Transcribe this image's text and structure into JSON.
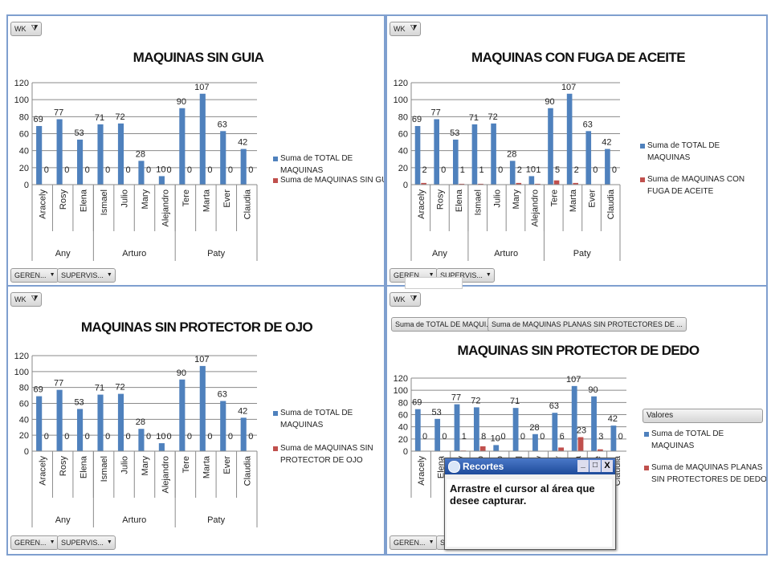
{
  "panels": [
    {
      "filter_label": "WK",
      "buttons": [
        "GEREN...",
        "SUPERVIS..."
      ]
    },
    {
      "filter_label": "WK",
      "buttons": [
        "GEREN...",
        "SUPERVIS..."
      ]
    },
    {
      "filter_label": "WK",
      "buttons": [
        "GEREN...",
        "SUPERVIS..."
      ]
    },
    {
      "filter_label": "WK",
      "buttons": [
        "GEREN...",
        "SUPERVIS..."
      ]
    }
  ],
  "chart_data": [
    {
      "type": "bar",
      "title": "MAQUINAS SIN GUIA",
      "categories": [
        "Aracely",
        "Rosy",
        "Elena",
        "Ismael",
        "Julio",
        "Mary",
        "Alejandro",
        "Tere",
        "Marta",
        "Ever",
        "Claudia"
      ],
      "category_groups": [
        {
          "name": "Any",
          "size": 3
        },
        {
          "name": "Arturo",
          "size": 4
        },
        {
          "name": "Paty",
          "size": 4
        }
      ],
      "series": [
        {
          "name": "Suma de TOTAL DE MAQUINAS",
          "color": "#4f81bd",
          "values": [
            69,
            77,
            53,
            71,
            72,
            28,
            10,
            90,
            107,
            63,
            42
          ]
        },
        {
          "name": "Suma de MAQUINAS SIN GUIA",
          "color": "#c0504d",
          "values": [
            0,
            0,
            0,
            0,
            0,
            0,
            0,
            0,
            0,
            0,
            0
          ]
        }
      ],
      "ylim": [
        0,
        120
      ],
      "yticks": [
        0,
        20,
        40,
        60,
        80,
        100,
        120
      ],
      "grid": true
    },
    {
      "type": "bar",
      "title": "MAQUINAS CON FUGA DE ACEITE",
      "categories": [
        "Aracely",
        "Rosy",
        "Elena",
        "Ismael",
        "Julio",
        "Mary",
        "Alejandro",
        "Tere",
        "Marta",
        "Ever",
        "Claudia"
      ],
      "category_groups": [
        {
          "name": "Any",
          "size": 3
        },
        {
          "name": "Arturo",
          "size": 4
        },
        {
          "name": "Paty",
          "size": 4
        }
      ],
      "series": [
        {
          "name": "Suma de TOTAL DE MAQUINAS",
          "color": "#4f81bd",
          "values": [
            69,
            77,
            53,
            71,
            72,
            28,
            10,
            90,
            107,
            63,
            42
          ]
        },
        {
          "name": "Suma de MAQUINAS CON FUGA DE ACEITE",
          "color": "#c0504d",
          "values": [
            2,
            0,
            1,
            1,
            0,
            2,
            1,
            5,
            2,
            0,
            0
          ]
        }
      ],
      "ylim": [
        0,
        120
      ],
      "yticks": [
        0,
        20,
        40,
        60,
        80,
        100,
        120
      ],
      "grid": true
    },
    {
      "type": "bar",
      "title": "MAQUINAS SIN PROTECTOR DE OJO",
      "categories": [
        "Aracely",
        "Rosy",
        "Elena",
        "Ismael",
        "Julio",
        "Mary",
        "Alejandro",
        "Tere",
        "Marta",
        "Ever",
        "Claudia"
      ],
      "category_groups": [
        {
          "name": "Any",
          "size": 3
        },
        {
          "name": "Arturo",
          "size": 4
        },
        {
          "name": "Paty",
          "size": 4
        }
      ],
      "series": [
        {
          "name": "Suma de TOTAL DE MAQUINAS",
          "color": "#4f81bd",
          "values": [
            69,
            77,
            53,
            71,
            72,
            28,
            10,
            90,
            107,
            63,
            42
          ]
        },
        {
          "name": "Suma de MAQUINAS SIN PROTECTOR DE OJO",
          "color": "#c0504d",
          "values": [
            0,
            0,
            0,
            0,
            0,
            0,
            0,
            0,
            0,
            0,
            0
          ]
        }
      ],
      "ylim": [
        0,
        120
      ],
      "yticks": [
        0,
        20,
        40,
        60,
        80,
        100,
        120
      ],
      "grid": true
    },
    {
      "type": "bar",
      "title": "MAQUINAS SIN PROTECTOR DE DEDO",
      "field_buttons": [
        "Suma de TOTAL DE MAQUI...",
        "Suma de MAQUINAS PLANAS SIN PROTECTORES DE ..."
      ],
      "legend_title": "Valores",
      "categories": [
        "Aracely",
        "Elena",
        "Rosy",
        "Julio",
        "Alejandro",
        "Ismael",
        "Mary",
        "Ever",
        "Marta",
        "Tere",
        "Claudia"
      ],
      "series": [
        {
          "name": "Suma de TOTAL DE MAQUINAS",
          "color": "#4f81bd",
          "values": [
            69,
            53,
            77,
            72,
            10,
            71,
            28,
            63,
            107,
            90,
            42
          ]
        },
        {
          "name": "Suma de MAQUINAS PLANAS SIN PROTECTORES DE DEDO",
          "color": "#c0504d",
          "values": [
            0,
            0,
            1,
            8,
            0,
            0,
            0,
            6,
            23,
            3,
            0
          ]
        }
      ],
      "ylim": [
        0,
        120
      ],
      "yticks": [
        0,
        20,
        40,
        60,
        80,
        100,
        120
      ],
      "grid": true
    }
  ],
  "snip_tool": {
    "title": "Recortes",
    "message": "Arrastre el cursor al área que desee capturar."
  }
}
